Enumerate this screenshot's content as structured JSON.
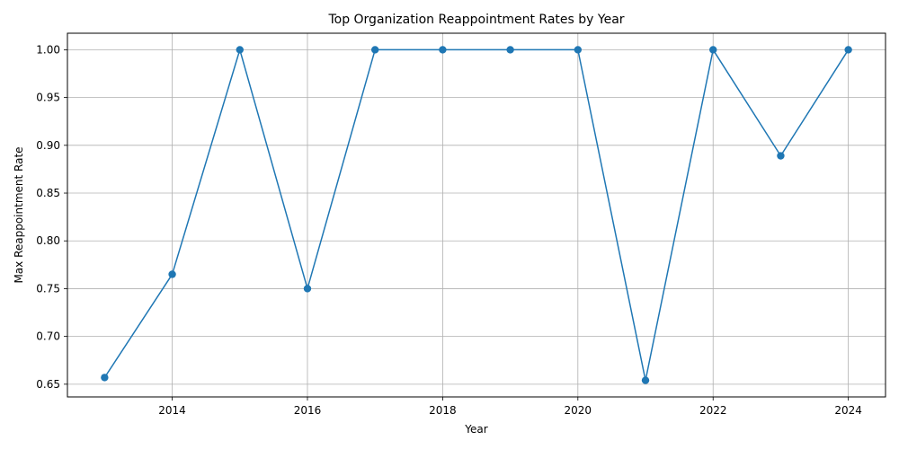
{
  "chart_data": {
    "type": "line",
    "title": "Top Organization Reappointment Rates by Year",
    "xlabel": "Year",
    "ylabel": "Max Reappointment Rate",
    "x": [
      2013,
      2014,
      2015,
      2016,
      2017,
      2018,
      2019,
      2020,
      2021,
      2022,
      2023,
      2024
    ],
    "series": [
      {
        "values": [
          0.657,
          0.765,
          1.0,
          0.75,
          1.0,
          1.0,
          1.0,
          1.0,
          0.654,
          1.0,
          0.889,
          1.0
        ],
        "color": "#1f77b4",
        "marker": "circle"
      }
    ],
    "xlim": [
      2012.45,
      2024.55
    ],
    "ylim": [
      0.6367,
      1.0173
    ],
    "xticks": [
      2014,
      2016,
      2018,
      2020,
      2022,
      2024
    ],
    "yticks": [
      0.65,
      0.7,
      0.75,
      0.8,
      0.85,
      0.9,
      0.95,
      1.0
    ],
    "grid": true,
    "legend": false
  }
}
